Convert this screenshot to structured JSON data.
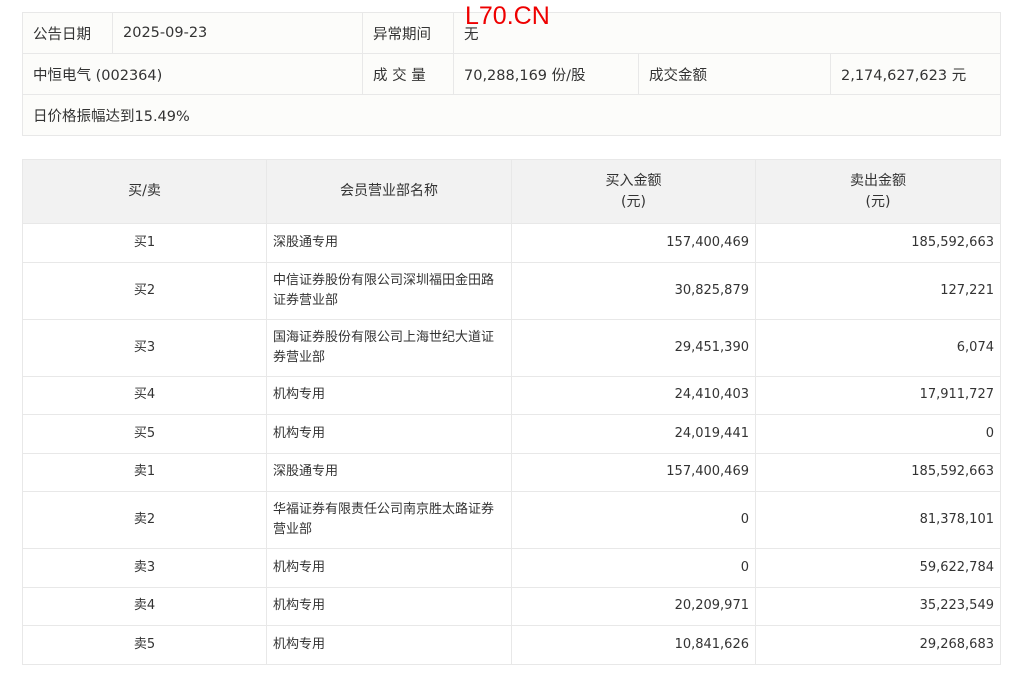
{
  "watermark": "L70.CN",
  "info": {
    "date_label": "公告日期",
    "date": "2025-09-23",
    "period_label": "异常期间",
    "period": "无",
    "stock": "中恒电气 (002364)",
    "volume_label": "成 交 量",
    "volume": "70,288,169 份/股",
    "amount_label": "成交金额",
    "amount": "2,174,627,623 元",
    "reason": "日价格振幅达到15.49%"
  },
  "table": {
    "headers": [
      "买/卖",
      "会员营业部名称",
      "买入金额\n(元)",
      "卖出金额\n(元)"
    ],
    "rows": [
      {
        "side": "买1",
        "name": "深股通专用",
        "buy": "157,400,469",
        "sell": "185,592,663",
        "tall": false
      },
      {
        "side": "买2",
        "name": "中信证券股份有限公司深圳福田金田路证券营业部",
        "buy": "30,825,879",
        "sell": "127,221",
        "tall": true
      },
      {
        "side": "买3",
        "name": "国海证券股份有限公司上海世纪大道证券营业部",
        "buy": "29,451,390",
        "sell": "6,074",
        "tall": true
      },
      {
        "side": "买4",
        "name": "机构专用",
        "buy": "24,410,403",
        "sell": "17,911,727",
        "tall": false
      },
      {
        "side": "买5",
        "name": "机构专用",
        "buy": "24,019,441",
        "sell": "0",
        "tall": false
      },
      {
        "side": "卖1",
        "name": "深股通专用",
        "buy": "157,400,469",
        "sell": "185,592,663",
        "tall": false
      },
      {
        "side": "卖2",
        "name": "华福证券有限责任公司南京胜太路证券营业部",
        "buy": "0",
        "sell": "81,378,101",
        "tall": true
      },
      {
        "side": "卖3",
        "name": "机构专用",
        "buy": "0",
        "sell": "59,622,784",
        "tall": false
      },
      {
        "side": "卖4",
        "name": "机构专用",
        "buy": "20,209,971",
        "sell": "35,223,549",
        "tall": false
      },
      {
        "side": "卖5",
        "name": "机构专用",
        "buy": "10,841,626",
        "sell": "29,268,683",
        "tall": false
      }
    ]
  }
}
